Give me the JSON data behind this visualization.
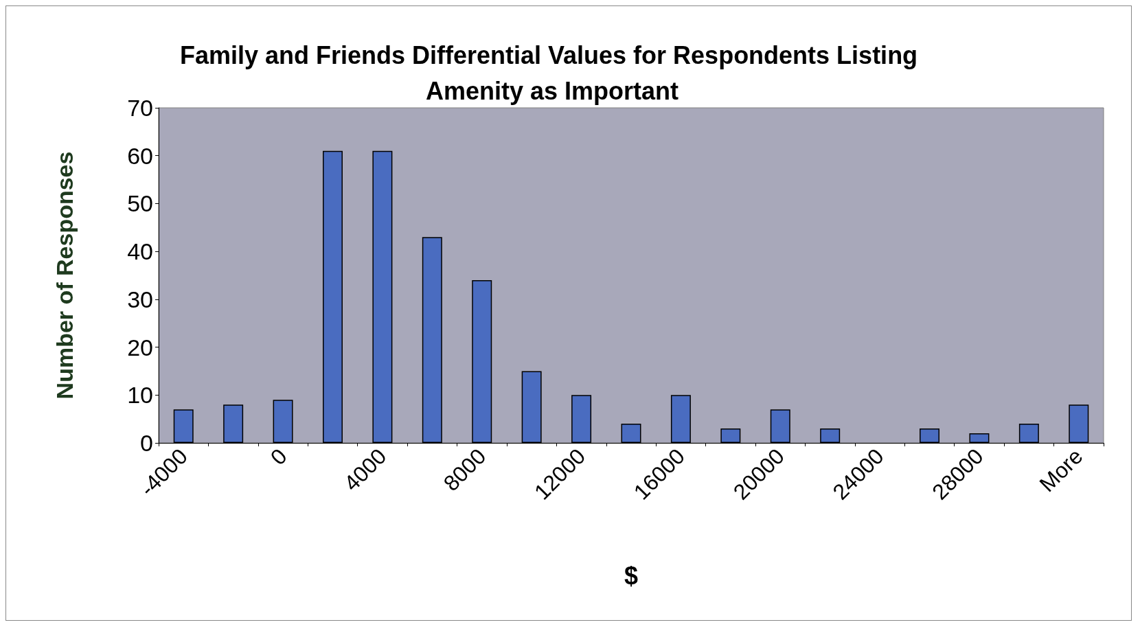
{
  "chart_data": {
    "type": "bar",
    "title": "Family and Friends Differential Values for Respondents Listing Amenity as Important",
    "xlabel": "$",
    "ylabel": "Number of Responses",
    "categories": [
      "-4000",
      null,
      "0",
      null,
      "4000",
      null,
      "8000",
      null,
      "12000",
      null,
      "16000",
      null,
      "20000",
      null,
      "24000",
      null,
      "28000",
      null,
      "More"
    ],
    "values": [
      7,
      8,
      9,
      61,
      61,
      43,
      34,
      15,
      10,
      4,
      10,
      3,
      7,
      3,
      0,
      3,
      2,
      4,
      8
    ],
    "color": "#4a6cc0",
    "ylim": [
      0,
      70
    ],
    "yticks": [
      0,
      10,
      20,
      30,
      40,
      50,
      60,
      70
    ],
    "grid": false
  }
}
